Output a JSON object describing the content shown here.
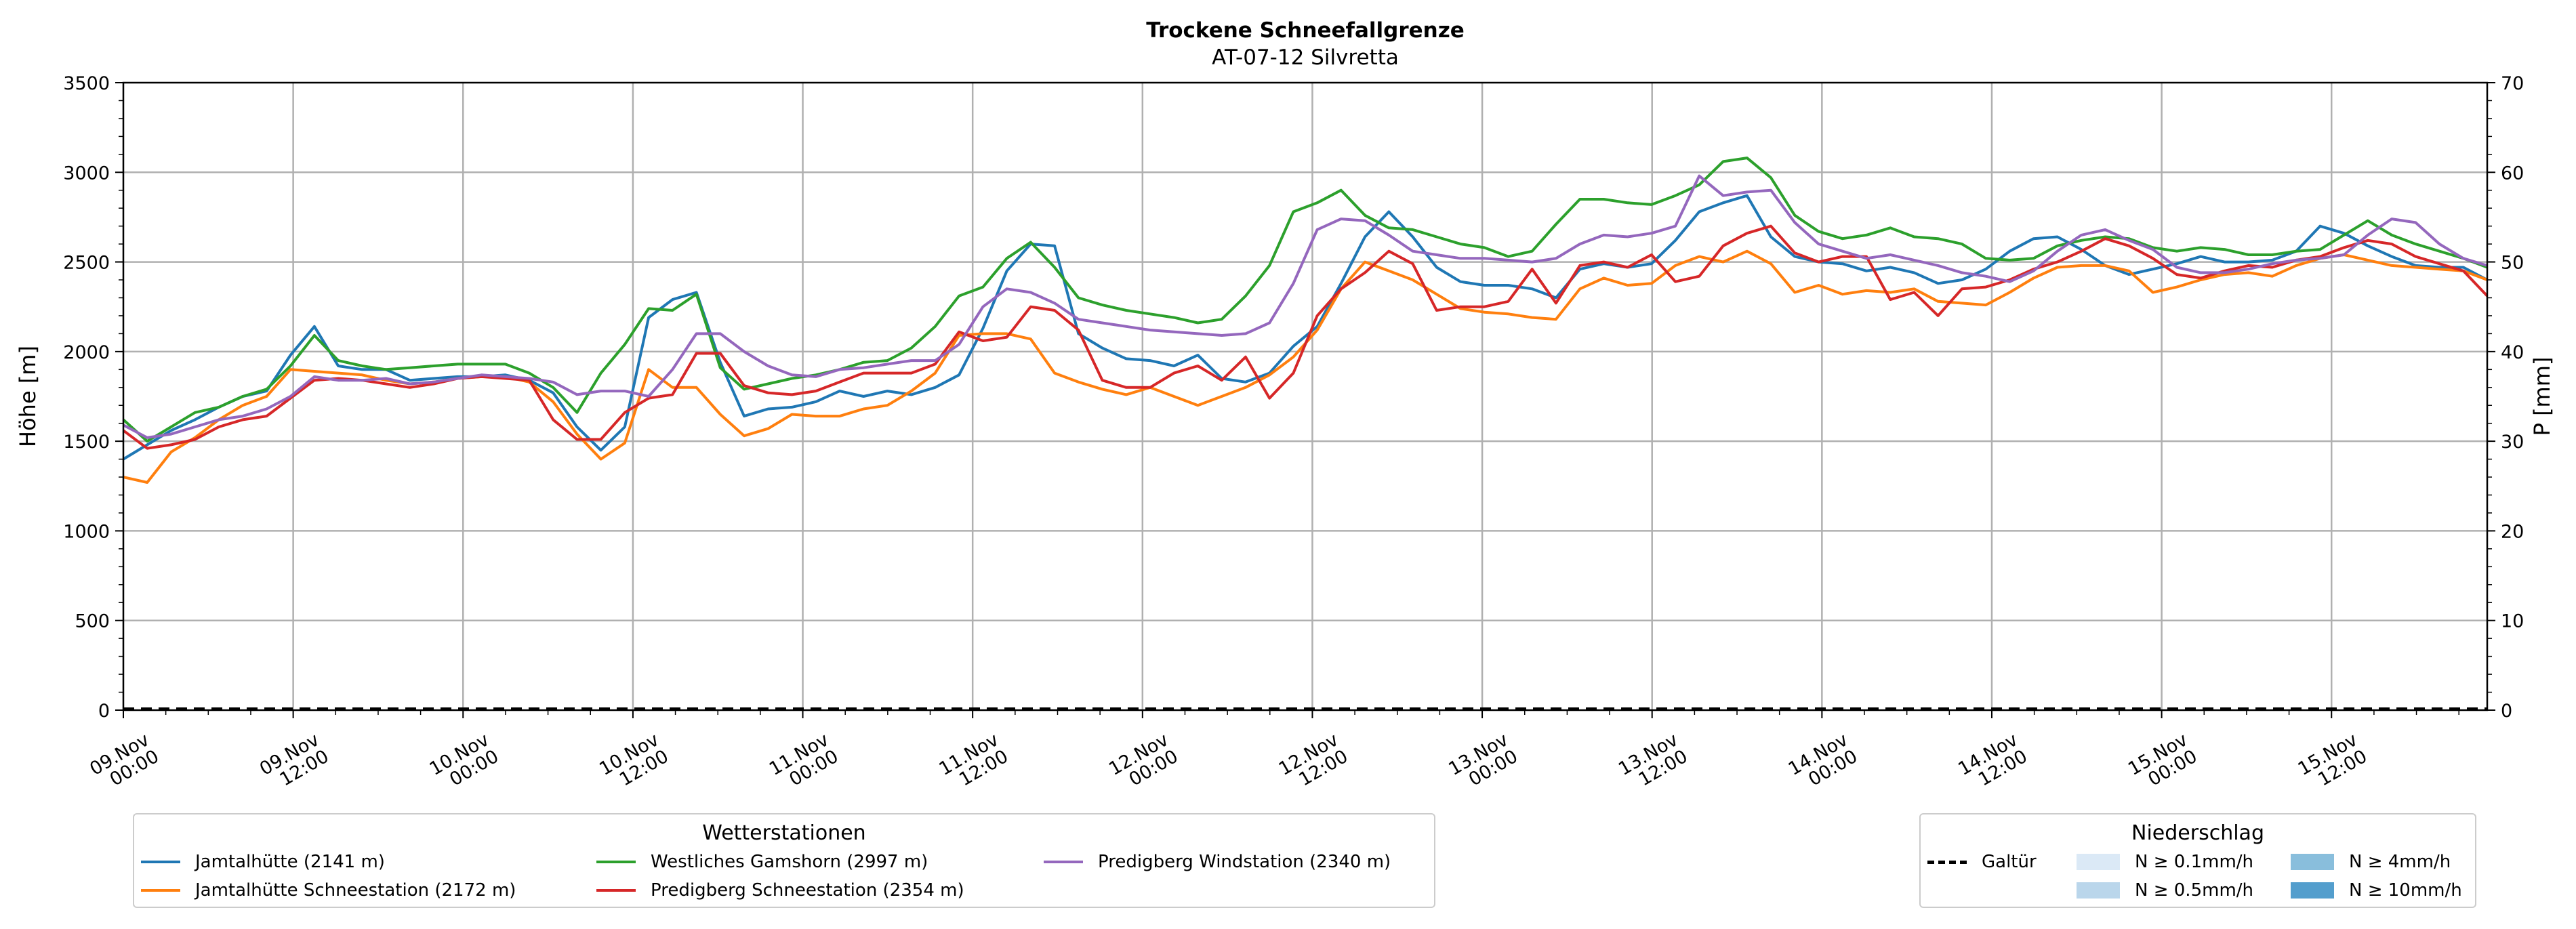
{
  "chart_data": {
    "type": "line",
    "title": "Trockene Schneefallgrenze",
    "subtitle": "AT-07-12 Silvretta",
    "ylabel": "Höhe [m]",
    "ylabel_right": "P [mm]",
    "ylim": [
      0,
      3500
    ],
    "ylim_right": [
      0,
      70
    ],
    "yticks": [
      "0",
      "500",
      "1000",
      "1500",
      "2000",
      "2500",
      "3000",
      "3500"
    ],
    "yticks_right": [
      "0",
      "10",
      "20",
      "30",
      "40",
      "50",
      "60",
      "70"
    ],
    "xticks": [
      {
        "day": "09.Nov",
        "time": "00:00"
      },
      {
        "day": "09.Nov",
        "time": "12:00"
      },
      {
        "day": "10.Nov",
        "time": "00:00"
      },
      {
        "day": "10.Nov",
        "time": "12:00"
      },
      {
        "day": "11.Nov",
        "time": "00:00"
      },
      {
        "day": "11.Nov",
        "time": "12:00"
      },
      {
        "day": "12.Nov",
        "time": "00:00"
      },
      {
        "day": "12.Nov",
        "time": "12:00"
      },
      {
        "day": "13.Nov",
        "time": "00:00"
      },
      {
        "day": "13.Nov",
        "time": "12:00"
      },
      {
        "day": "14.Nov",
        "time": "00:00"
      },
      {
        "day": "14.Nov",
        "time": "12:00"
      },
      {
        "day": "15.Nov",
        "time": "00:00"
      },
      {
        "day": "15.Nov",
        "time": "12:00"
      }
    ],
    "x_hours_start": 0,
    "x_hours_end": 167,
    "grid": true,
    "series_step_hours": 2,
    "series": [
      {
        "name": "Jamtalhütte (2141 m)",
        "color": "#1f77b4",
        "values": [
          1400,
          1480,
          1560,
          1620,
          1690,
          1750,
          1780,
          1980,
          2140,
          1920,
          1900,
          1900,
          1840,
          1850,
          1860,
          1860,
          1870,
          1840,
          1770,
          1580,
          1450,
          1580,
          2190,
          2290,
          2330,
          1940,
          1640,
          1680,
          1690,
          1720,
          1780,
          1750,
          1780,
          1760,
          1800,
          1870,
          2130,
          2450,
          2600,
          2590,
          2100,
          2020,
          1960,
          1950,
          1920,
          1980,
          1850,
          1830,
          1880,
          2030,
          2140,
          2380,
          2640,
          2780,
          2640,
          2470,
          2390,
          2370,
          2370,
          2350,
          2300,
          2460,
          2490,
          2470,
          2490,
          2620,
          2780,
          2830,
          2870,
          2640,
          2530,
          2500,
          2490,
          2450,
          2470,
          2440,
          2380,
          2400,
          2460,
          2560,
          2630,
          2640,
          2570,
          2480,
          2430,
          2460,
          2490,
          2530,
          2500,
          2500,
          2510,
          2560,
          2700,
          2660,
          2590,
          2530,
          2480,
          2470,
          2470,
          2400
        ]
      },
      {
        "name": "Jamtalhütte Schneestation (2172 m)",
        "color": "#ff7f0e",
        "values": [
          1300,
          1270,
          1440,
          1520,
          1620,
          1700,
          1750,
          1900,
          1890,
          1880,
          1870,
          1840,
          1820,
          1830,
          1850,
          1860,
          1860,
          1830,
          1720,
          1540,
          1400,
          1490,
          1900,
          1800,
          1800,
          1650,
          1530,
          1570,
          1650,
          1640,
          1640,
          1680,
          1700,
          1780,
          1880,
          2090,
          2100,
          2100,
          2070,
          1880,
          1830,
          1790,
          1760,
          1800,
          1750,
          1700,
          1750,
          1800,
          1870,
          1970,
          2120,
          2350,
          2500,
          2450,
          2400,
          2320,
          2240,
          2220,
          2210,
          2190,
          2180,
          2350,
          2410,
          2370,
          2380,
          2480,
          2530,
          2500,
          2560,
          2490,
          2330,
          2370,
          2320,
          2340,
          2330,
          2350,
          2280,
          2270,
          2260,
          2330,
          2410,
          2470,
          2480,
          2480,
          2450,
          2330,
          2360,
          2400,
          2430,
          2440,
          2420,
          2480,
          2520,
          2540,
          2510,
          2480,
          2470,
          2460,
          2450,
          2400
        ]
      },
      {
        "name": "Westliches Gamshorn (2997 m)",
        "color": "#2ca02c",
        "values": [
          1620,
          1500,
          1580,
          1660,
          1690,
          1750,
          1790,
          1920,
          2090,
          1950,
          1920,
          1900,
          1910,
          1920,
          1930,
          1930,
          1930,
          1880,
          1800,
          1660,
          1880,
          2040,
          2240,
          2230,
          2320,
          1910,
          1790,
          1820,
          1850,
          1870,
          1900,
          1940,
          1950,
          2020,
          2140,
          2310,
          2360,
          2520,
          2610,
          2470,
          2300,
          2260,
          2230,
          2210,
          2190,
          2160,
          2180,
          2310,
          2480,
          2780,
          2830,
          2900,
          2760,
          2690,
          2680,
          2640,
          2600,
          2580,
          2530,
          2560,
          2710,
          2850,
          2850,
          2830,
          2820,
          2870,
          2930,
          3060,
          3080,
          2970,
          2760,
          2670,
          2630,
          2650,
          2690,
          2640,
          2630,
          2600,
          2520,
          2510,
          2520,
          2590,
          2620,
          2640,
          2630,
          2580,
          2560,
          2580,
          2570,
          2540,
          2540,
          2560,
          2570,
          2650,
          2730,
          2650,
          2600,
          2560,
          2520,
          2470
        ]
      },
      {
        "name": "Predigberg Schneestation (2354 m)",
        "color": "#d62728",
        "values": [
          1560,
          1460,
          1480,
          1510,
          1580,
          1620,
          1640,
          1740,
          1840,
          1850,
          1840,
          1820,
          1800,
          1820,
          1850,
          1860,
          1850,
          1840,
          1620,
          1510,
          1510,
          1660,
          1740,
          1760,
          1990,
          1990,
          1810,
          1770,
          1760,
          1780,
          1830,
          1880,
          1880,
          1880,
          1930,
          2110,
          2060,
          2080,
          2250,
          2230,
          2120,
          1840,
          1800,
          1800,
          1880,
          1920,
          1840,
          1970,
          1740,
          1880,
          2200,
          2350,
          2440,
          2560,
          2490,
          2230,
          2250,
          2250,
          2280,
          2460,
          2270,
          2480,
          2500,
          2470,
          2540,
          2390,
          2420,
          2590,
          2660,
          2700,
          2550,
          2500,
          2530,
          2530,
          2290,
          2330,
          2200,
          2350,
          2360,
          2400,
          2460,
          2500,
          2560,
          2630,
          2590,
          2520,
          2430,
          2410,
          2450,
          2480,
          2470,
          2510,
          2530,
          2580,
          2620,
          2600,
          2530,
          2490,
          2450,
          2310
        ]
      },
      {
        "name": "Predigberg Windstation (2340 m)",
        "color": "#9467bd",
        "values": [
          1590,
          1520,
          1540,
          1580,
          1620,
          1640,
          1680,
          1750,
          1860,
          1840,
          1840,
          1850,
          1820,
          1830,
          1850,
          1870,
          1860,
          1850,
          1830,
          1760,
          1780,
          1780,
          1750,
          1900,
          2100,
          2100,
          2000,
          1920,
          1870,
          1860,
          1900,
          1910,
          1930,
          1950,
          1950,
          2040,
          2250,
          2350,
          2330,
          2270,
          2180,
          2160,
          2140,
          2120,
          2110,
          2100,
          2090,
          2100,
          2160,
          2380,
          2680,
          2740,
          2730,
          2650,
          2560,
          2540,
          2520,
          2520,
          2510,
          2500,
          2520,
          2600,
          2650,
          2640,
          2660,
          2700,
          2980,
          2870,
          2890,
          2900,
          2720,
          2600,
          2560,
          2520,
          2540,
          2510,
          2480,
          2440,
          2420,
          2390,
          2450,
          2560,
          2650,
          2680,
          2620,
          2570,
          2470,
          2440,
          2440,
          2460,
          2490,
          2510,
          2520,
          2540,
          2650,
          2740,
          2720,
          2600,
          2520,
          2480
        ]
      }
    ],
    "precip_station": "Galtür",
    "precip_values": [
      0,
      0
    ],
    "legends": {
      "stations": {
        "title": "Wetterstationen",
        "location": "lower-left"
      },
      "precip": {
        "title": "Niederschlag",
        "location": "lower-right"
      }
    },
    "precip_legend": [
      {
        "label": "N ≥ 0.1mm/h",
        "color": "#dbe9f6"
      },
      {
        "label": "N ≥ 0.5mm/h",
        "color": "#bad6eb"
      },
      {
        "label": "N ≥ 4mm/h",
        "color": "#89bedc"
      },
      {
        "label": "N ≥ 10mm/h",
        "color": "#539ecd"
      }
    ]
  }
}
